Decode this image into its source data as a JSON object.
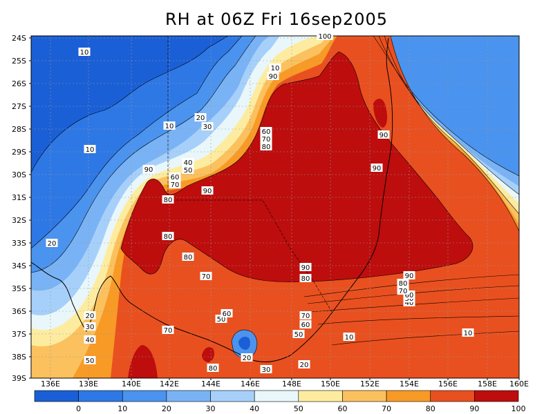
{
  "title": "RH at 06Z Fri 16sep2005",
  "map": {
    "lat_labels": [
      "24S",
      "25S",
      "26S",
      "27S",
      "28S",
      "29S",
      "30S",
      "31S",
      "32S",
      "33S",
      "34S",
      "35S",
      "36S",
      "37S",
      "38S",
      "39S"
    ],
    "lon_labels": [
      "136E",
      "138E",
      "140E",
      "142E",
      "144E",
      "146E",
      "148E",
      "150E",
      "152E",
      "154E",
      "156E",
      "158E",
      "160E"
    ],
    "contour_labels": [
      "10",
      "10",
      "10",
      "10",
      "10",
      "10",
      "20",
      "20",
      "20",
      "20",
      "20",
      "30",
      "30",
      "30",
      "40",
      "40",
      "40",
      "50",
      "50",
      "50",
      "50",
      "50",
      "60",
      "60",
      "60",
      "60",
      "60",
      "70",
      "70",
      "70",
      "70",
      "70",
      "70",
      "80",
      "80",
      "80",
      "80",
      "80",
      "80",
      "80",
      "90",
      "90",
      "90",
      "90",
      "90",
      "90",
      "90",
      "100"
    ]
  },
  "colorbar": {
    "labels": [
      "0",
      "10",
      "20",
      "30",
      "40",
      "50",
      "60",
      "70",
      "80",
      "90",
      "100"
    ],
    "colors": [
      "#1a5fd6",
      "#2e78e6",
      "#4a93ef",
      "#79b3f5",
      "#a6d0fa",
      "#e9f7fb",
      "#fdeca0",
      "#fbc15e",
      "#f79a26",
      "#e9501f",
      "#bd0d0d"
    ]
  }
}
